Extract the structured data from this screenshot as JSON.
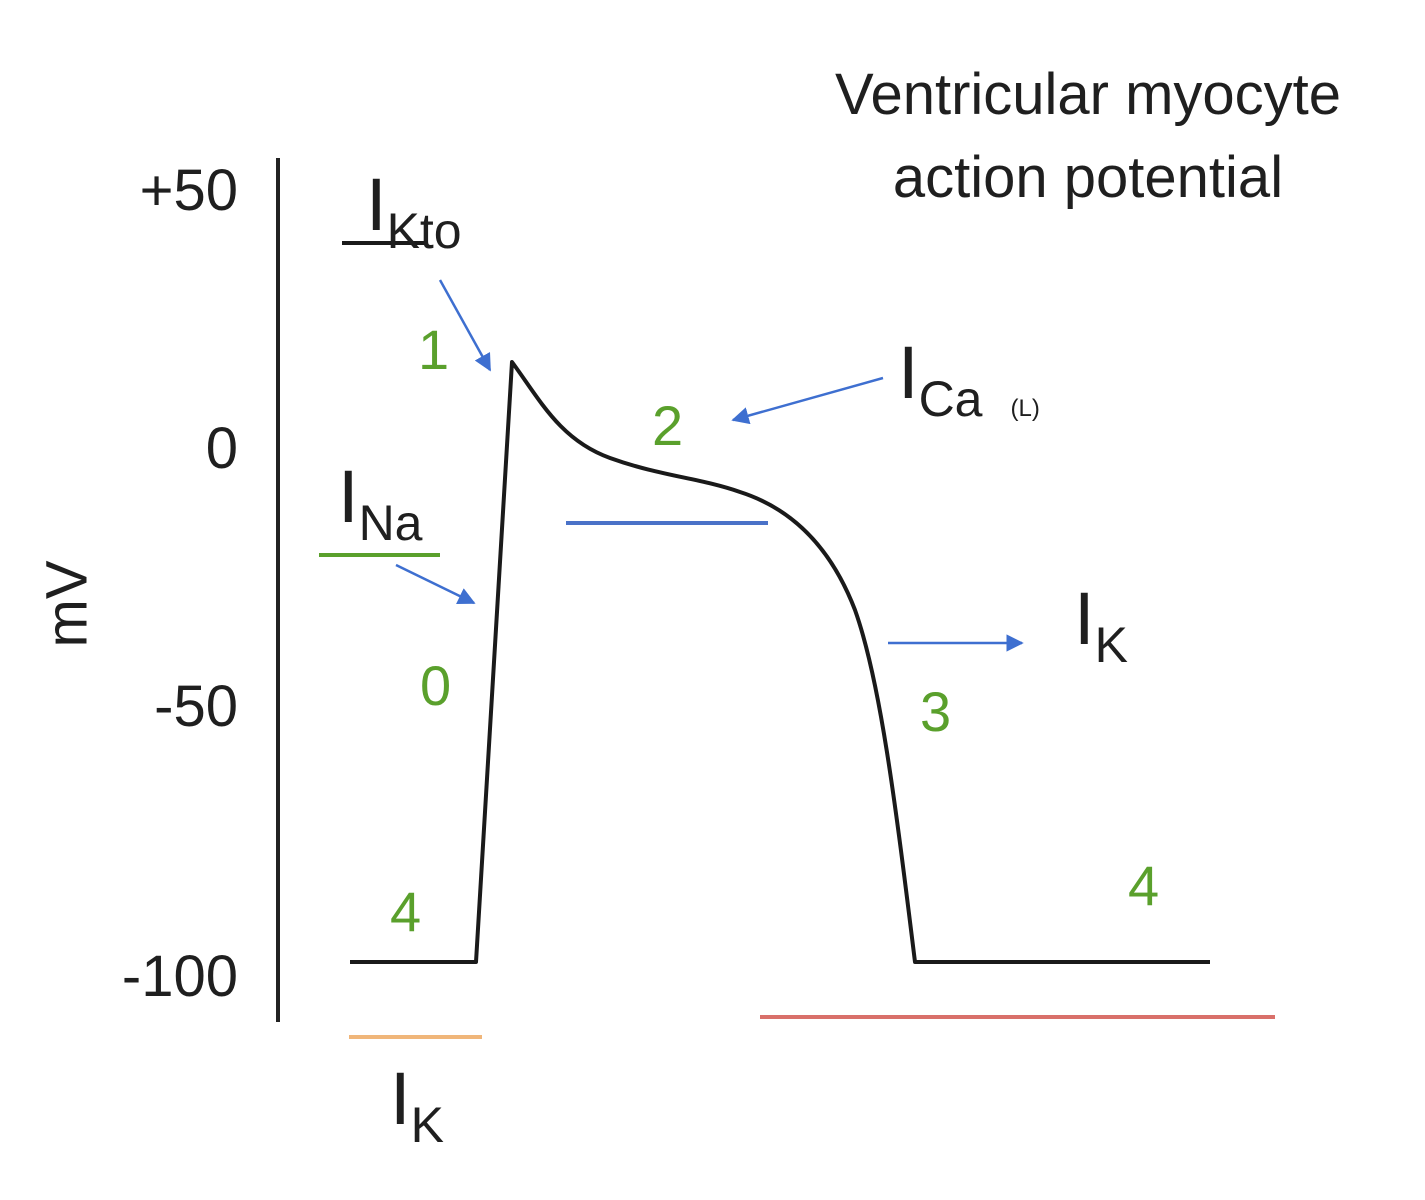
{
  "title": {
    "line1": "Ventricular myocyte",
    "line2": "action potential"
  },
  "y_axis": {
    "label": "mV",
    "ticks": [
      "+50",
      "0",
      "-50",
      "-100"
    ]
  },
  "phases": {
    "p0": "0",
    "p1": "1",
    "p2": "2",
    "p3": "3",
    "p4_left": "4",
    "p4_right": "4"
  },
  "currents": {
    "ikto": {
      "main": "I",
      "sub": "Kto"
    },
    "ina": {
      "main": "I",
      "sub": "Na"
    },
    "ica": {
      "main": "I",
      "sub": "Ca",
      "qualifier": "(L)"
    },
    "ik_right": {
      "main": "I",
      "sub": "K"
    },
    "ik_bottom": {
      "main": "I",
      "sub": "K"
    }
  },
  "colors": {
    "phase_label": "#5aa02c",
    "arrow": "#3e6fd0",
    "ina_bar": "#5aa02c",
    "ica_bar": "#4a72c8",
    "ik_bottom_bar": "#f0b67a",
    "ik_delayed_bar": "#d9706a",
    "trace": "#1a1a1a"
  }
}
